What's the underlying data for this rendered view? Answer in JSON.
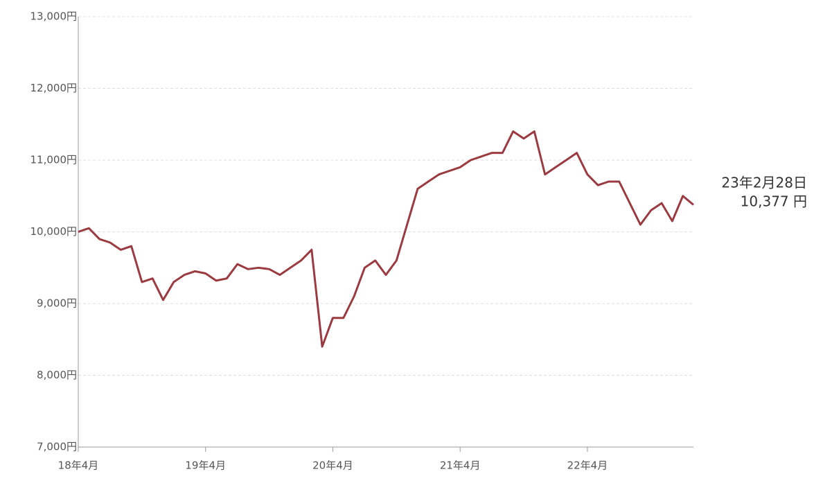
{
  "chart_data": {
    "type": "line",
    "x": [
      "2018-04",
      "2018-05",
      "2018-06",
      "2018-07",
      "2018-08",
      "2018-09",
      "2018-10",
      "2018-11",
      "2018-12",
      "2019-01",
      "2019-02",
      "2019-03",
      "2019-04",
      "2019-05",
      "2019-06",
      "2019-07",
      "2019-08",
      "2019-09",
      "2019-10",
      "2019-11",
      "2019-12",
      "2020-01",
      "2020-02",
      "2020-03",
      "2020-04",
      "2020-05",
      "2020-06",
      "2020-07",
      "2020-08",
      "2020-09",
      "2020-10",
      "2020-11",
      "2020-12",
      "2021-01",
      "2021-02",
      "2021-03",
      "2021-04",
      "2021-05",
      "2021-06",
      "2021-07",
      "2021-08",
      "2021-09",
      "2021-10",
      "2021-11",
      "2021-12",
      "2022-01",
      "2022-02",
      "2022-03",
      "2022-04",
      "2022-05",
      "2022-06",
      "2022-07",
      "2022-08",
      "2022-09",
      "2022-10",
      "2022-11",
      "2022-12",
      "2023-01",
      "2023-02"
    ],
    "series": [
      {
        "color": "#9b3a40",
        "values": [
          10000,
          10050,
          9900,
          9850,
          9750,
          9800,
          9300,
          9350,
          9050,
          9300,
          9400,
          9450,
          9420,
          9320,
          9350,
          9550,
          9480,
          9500,
          9480,
          9400,
          9500,
          9600,
          9750,
          8400,
          8800,
          8800,
          9100,
          9500,
          9600,
          9400,
          9600,
          10100,
          10600,
          10700,
          10800,
          10850,
          10900,
          11000,
          11050,
          11100,
          11100,
          11400,
          11300,
          11400,
          10800,
          10900,
          11000,
          11100,
          10800,
          10650,
          10700,
          10700,
          10400,
          10100,
          10300,
          10400,
          10150,
          10500,
          10377
        ]
      }
    ],
    "xlim": [
      "2018-04",
      "2023-02"
    ],
    "xticks": [
      {
        "value": "2018-04",
        "label": "18年4月"
      },
      {
        "value": "2019-04",
        "label": "19年4月"
      },
      {
        "value": "2020-04",
        "label": "20年4月"
      },
      {
        "value": "2021-04",
        "label": "21年4月"
      },
      {
        "value": "2022-04",
        "label": "22年4月"
      }
    ],
    "ylim": [
      7000,
      13000
    ],
    "yticks": [
      {
        "value": 7000,
        "label": "7,000円"
      },
      {
        "value": 8000,
        "label": "8,000円"
      },
      {
        "value": 9000,
        "label": "9,000円"
      },
      {
        "value": 10000,
        "label": "10,000円"
      },
      {
        "value": 11000,
        "label": "11,000円"
      },
      {
        "value": 12000,
        "label": "12,000円"
      },
      {
        "value": 13000,
        "label": "13,000円"
      }
    ],
    "grid": true,
    "annotation": {
      "text": "23年2月28日",
      "value": 10377,
      "label": "10,377 円"
    }
  }
}
